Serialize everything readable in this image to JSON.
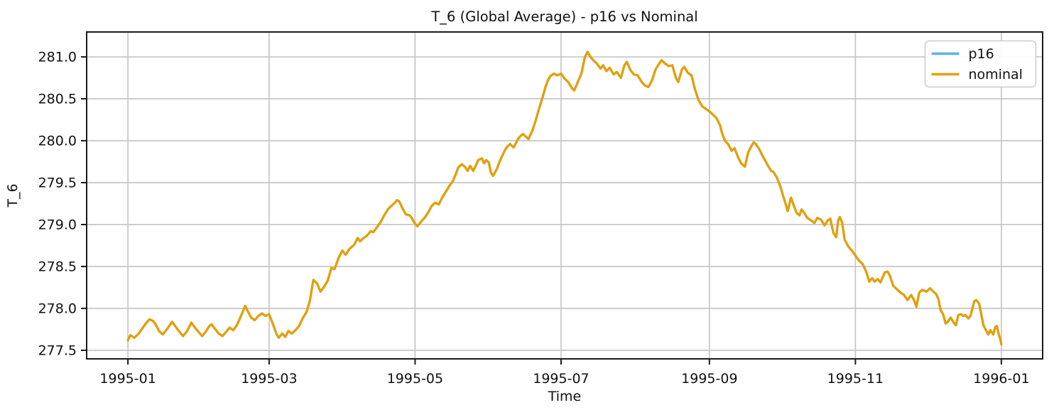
{
  "figure": {
    "background": "#ffffff"
  },
  "chart_data": {
    "type": "line",
    "title": "T_6 (Global Average) - p16 vs Nominal",
    "xlabel": "Time",
    "ylabel": "T_6",
    "grid": true,
    "grid_color": "#c6c6c6",
    "spine_color": "#1a1a1a",
    "x_axis": {
      "unit": "days since 1995-01-01",
      "lim": [
        -17.25,
        382.25
      ],
      "ticks": [
        {
          "day": 0,
          "label": "1995-01"
        },
        {
          "day": 59,
          "label": "1995-03"
        },
        {
          "day": 120,
          "label": "1995-05"
        },
        {
          "day": 181,
          "label": "1995-07"
        },
        {
          "day": 243,
          "label": "1995-09"
        },
        {
          "day": 304,
          "label": "1995-11"
        },
        {
          "day": 365,
          "label": "1996-01"
        }
      ]
    },
    "y_axis": {
      "lim": [
        277.398,
        281.297
      ],
      "ticks": [
        277.5,
        278.0,
        278.5,
        279.0,
        279.5,
        280.0,
        280.5,
        281.0
      ],
      "tick_decimals": 1
    },
    "legend": {
      "position": "upper-right",
      "entries": [
        {
          "label": "p16",
          "color": "#56B4E9"
        },
        {
          "label": "nominal",
          "color": "#E69F00"
        }
      ]
    },
    "series": [
      {
        "name": "p16",
        "color": "#56B4E9",
        "points": "shared"
      },
      {
        "name": "nominal",
        "color": "#E69F00",
        "points": "shared"
      }
    ],
    "shared_points": [
      [
        0,
        277.62
      ],
      [
        1,
        277.68
      ],
      [
        2.7,
        277.65
      ],
      [
        4.5,
        277.7
      ],
      [
        6,
        277.76
      ],
      [
        7.5,
        277.82
      ],
      [
        9,
        277.87
      ],
      [
        10.5,
        277.85
      ],
      [
        11.6,
        277.81
      ],
      [
        13,
        277.73
      ],
      [
        14.5,
        277.69
      ],
      [
        16,
        277.74
      ],
      [
        17.5,
        277.8
      ],
      [
        18.5,
        277.84
      ],
      [
        20,
        277.78
      ],
      [
        21.5,
        277.72
      ],
      [
        23,
        277.67
      ],
      [
        24.5,
        277.72
      ],
      [
        26,
        277.8
      ],
      [
        26.5,
        277.83
      ],
      [
        28,
        277.77
      ],
      [
        29.5,
        277.72
      ],
      [
        31,
        277.67
      ],
      [
        32.5,
        277.72
      ],
      [
        34,
        277.79
      ],
      [
        35,
        277.81
      ],
      [
        36.5,
        277.75
      ],
      [
        38,
        277.7
      ],
      [
        39.5,
        277.67
      ],
      [
        41,
        277.72
      ],
      [
        42.5,
        277.77
      ],
      [
        44,
        277.74
      ],
      [
        45.5,
        277.8
      ],
      [
        46.5,
        277.86
      ],
      [
        48,
        277.96
      ],
      [
        49,
        278.03
      ],
      [
        50,
        277.97
      ],
      [
        51.5,
        277.89
      ],
      [
        53,
        277.86
      ],
      [
        54.5,
        277.91
      ],
      [
        56,
        277.94
      ],
      [
        57.5,
        277.91
      ],
      [
        59,
        277.93
      ],
      [
        60.5,
        277.82
      ],
      [
        62,
        277.7
      ],
      [
        63,
        277.65
      ],
      [
        64.5,
        277.7
      ],
      [
        65.8,
        277.66
      ],
      [
        67,
        277.73
      ],
      [
        68.5,
        277.7
      ],
      [
        70,
        277.74
      ],
      [
        71.5,
        277.79
      ],
      [
        73,
        277.88
      ],
      [
        74.7,
        277.96
      ],
      [
        76,
        278.09
      ],
      [
        77.5,
        278.34
      ],
      [
        79,
        278.3
      ],
      [
        80.5,
        278.2
      ],
      [
        82,
        278.26
      ],
      [
        83.5,
        278.33
      ],
      [
        85,
        278.48
      ],
      [
        86.4,
        278.47
      ],
      [
        88,
        278.6
      ],
      [
        89.6,
        278.69
      ],
      [
        91,
        278.64
      ],
      [
        92.6,
        278.71
      ],
      [
        94.6,
        278.76
      ],
      [
        96,
        278.84
      ],
      [
        97,
        278.8
      ],
      [
        98.5,
        278.84
      ],
      [
        100,
        278.87
      ],
      [
        101.4,
        278.92
      ],
      [
        102.6,
        278.91
      ],
      [
        104.1,
        278.97
      ],
      [
        105.6,
        279.03
      ],
      [
        107.1,
        279.11
      ],
      [
        108.6,
        279.18
      ],
      [
        110,
        279.22
      ],
      [
        111.5,
        279.26
      ],
      [
        112.4,
        279.29
      ],
      [
        113.3,
        279.28
      ],
      [
        114.8,
        279.19
      ],
      [
        116.2,
        279.12
      ],
      [
        117.7,
        279.11
      ],
      [
        118.6,
        279.08
      ],
      [
        119.5,
        279.03
      ],
      [
        121,
        278.98
      ],
      [
        122.4,
        279.03
      ],
      [
        123.9,
        279.08
      ],
      [
        125.4,
        279.14
      ],
      [
        126.9,
        279.22
      ],
      [
        128.4,
        279.26
      ],
      [
        129.9,
        279.24
      ],
      [
        131.3,
        279.32
      ],
      [
        132.8,
        279.39
      ],
      [
        134.3,
        279.46
      ],
      [
        135.8,
        279.52
      ],
      [
        137,
        279.6
      ],
      [
        138,
        279.68
      ],
      [
        139.5,
        279.72
      ],
      [
        140.8,
        279.69
      ],
      [
        142,
        279.64
      ],
      [
        143,
        279.7
      ],
      [
        144.3,
        279.64
      ],
      [
        145.5,
        279.71
      ],
      [
        146.4,
        279.77
      ],
      [
        147.9,
        279.79
      ],
      [
        148.8,
        279.73
      ],
      [
        149.7,
        279.77
      ],
      [
        150.8,
        279.74
      ],
      [
        151.7,
        279.62
      ],
      [
        152.6,
        279.58
      ],
      [
        154.1,
        279.66
      ],
      [
        155.6,
        279.77
      ],
      [
        157.1,
        279.86
      ],
      [
        158.2,
        279.92
      ],
      [
        159.7,
        279.96
      ],
      [
        161.2,
        279.92
      ],
      [
        162.1,
        279.97
      ],
      [
        163,
        280.02
      ],
      [
        164.2,
        280.06
      ],
      [
        165.1,
        280.08
      ],
      [
        166.2,
        280.05
      ],
      [
        167.4,
        280.02
      ],
      [
        169,
        280.12
      ],
      [
        170.4,
        280.24
      ],
      [
        171.8,
        280.38
      ],
      [
        173.3,
        280.52
      ],
      [
        174.5,
        280.64
      ],
      [
        175.5,
        280.72
      ],
      [
        176.5,
        280.77
      ],
      [
        178,
        280.8
      ],
      [
        179.5,
        280.78
      ],
      [
        181,
        280.8
      ],
      [
        182.5,
        280.74
      ],
      [
        184,
        280.7
      ],
      [
        185.5,
        280.63
      ],
      [
        186.5,
        280.6
      ],
      [
        188,
        280.7
      ],
      [
        189.5,
        280.8
      ],
      [
        191,
        281.0
      ],
      [
        192.1,
        281.06
      ],
      [
        193.3,
        281.0
      ],
      [
        194.5,
        280.96
      ],
      [
        196,
        280.92
      ],
      [
        197.5,
        280.86
      ],
      [
        198.6,
        280.9
      ],
      [
        200,
        280.83
      ],
      [
        201.3,
        280.87
      ],
      [
        203,
        280.79
      ],
      [
        204.3,
        280.82
      ],
      [
        206,
        280.75
      ],
      [
        207.5,
        280.9
      ],
      [
        208.5,
        280.94
      ],
      [
        210,
        280.84
      ],
      [
        211.5,
        280.79
      ],
      [
        213,
        280.78
      ],
      [
        214.5,
        280.71
      ],
      [
        216,
        280.66
      ],
      [
        217.5,
        280.64
      ],
      [
        219,
        280.72
      ],
      [
        220.5,
        280.85
      ],
      [
        222,
        280.92
      ],
      [
        223,
        280.96
      ],
      [
        224.5,
        280.92
      ],
      [
        226,
        280.89
      ],
      [
        227.5,
        280.9
      ],
      [
        229,
        280.75
      ],
      [
        230,
        280.7
      ],
      [
        231.5,
        280.85
      ],
      [
        232.5,
        280.88
      ],
      [
        234,
        280.81
      ],
      [
        235.5,
        280.78
      ],
      [
        237,
        280.61
      ],
      [
        238.5,
        280.48
      ],
      [
        240,
        280.41
      ],
      [
        241.5,
        280.38
      ],
      [
        243,
        280.35
      ],
      [
        244.5,
        280.31
      ],
      [
        246,
        280.27
      ],
      [
        247.5,
        280.18
      ],
      [
        248.4,
        280.08
      ],
      [
        249.5,
        280.0
      ],
      [
        250.8,
        279.96
      ],
      [
        252.3,
        279.88
      ],
      [
        253.5,
        279.91
      ],
      [
        255,
        279.8
      ],
      [
        256.3,
        279.73
      ],
      [
        257.8,
        279.69
      ],
      [
        259.2,
        279.86
      ],
      [
        260.6,
        279.94
      ],
      [
        261.5,
        279.98
      ],
      [
        262.4,
        279.96
      ],
      [
        263.8,
        279.9
      ],
      [
        265,
        279.83
      ],
      [
        266.4,
        279.76
      ],
      [
        267.3,
        279.71
      ],
      [
        268.8,
        279.64
      ],
      [
        269.7,
        279.63
      ],
      [
        271.2,
        279.56
      ],
      [
        272.7,
        279.45
      ],
      [
        273.6,
        279.36
      ],
      [
        274.5,
        279.28
      ],
      [
        275.7,
        279.16
      ],
      [
        277.1,
        279.32
      ],
      [
        278.1,
        279.24
      ],
      [
        279.4,
        279.14
      ],
      [
        280.6,
        279.11
      ],
      [
        281.5,
        279.18
      ],
      [
        282.4,
        279.15
      ],
      [
        283.9,
        279.08
      ],
      [
        285.4,
        279.05
      ],
      [
        286.9,
        279.02
      ],
      [
        288.1,
        279.08
      ],
      [
        289.6,
        279.06
      ],
      [
        291.1,
        278.99
      ],
      [
        292.5,
        279.05
      ],
      [
        293.5,
        279.07
      ],
      [
        294.8,
        278.9
      ],
      [
        296,
        278.85
      ],
      [
        296.8,
        279.05
      ],
      [
        297.5,
        279.09
      ],
      [
        298.5,
        279.02
      ],
      [
        299.5,
        278.82
      ],
      [
        301,
        278.74
      ],
      [
        302.5,
        278.69
      ],
      [
        304,
        278.63
      ],
      [
        305.5,
        278.57
      ],
      [
        307,
        278.53
      ],
      [
        308.5,
        278.44
      ],
      [
        309.8,
        278.32
      ],
      [
        311,
        278.36
      ],
      [
        312,
        278.32
      ],
      [
        313.3,
        278.35
      ],
      [
        314.5,
        278.31
      ],
      [
        316.3,
        278.43
      ],
      [
        317.4,
        278.44
      ],
      [
        318.3,
        278.4
      ],
      [
        319.8,
        278.27
      ],
      [
        321.3,
        278.23
      ],
      [
        322.8,
        278.19
      ],
      [
        324.3,
        278.16
      ],
      [
        325.8,
        278.1
      ],
      [
        327.3,
        278.16
      ],
      [
        328.5,
        278.1
      ],
      [
        329.5,
        278.02
      ],
      [
        330.7,
        278.19
      ],
      [
        331.9,
        278.22
      ],
      [
        333.7,
        278.2
      ],
      [
        335.2,
        278.24
      ],
      [
        336.6,
        278.2
      ],
      [
        337.8,
        278.17
      ],
      [
        338.7,
        278.11
      ],
      [
        339.6,
        277.98
      ],
      [
        340.8,
        277.92
      ],
      [
        341.7,
        277.82
      ],
      [
        342.6,
        277.84
      ],
      [
        343.8,
        277.89
      ],
      [
        345.3,
        277.82
      ],
      [
        346,
        277.8
      ],
      [
        347,
        277.92
      ],
      [
        348.2,
        277.93
      ],
      [
        349.1,
        277.91
      ],
      [
        350,
        277.92
      ],
      [
        351.2,
        277.88
      ],
      [
        352.1,
        277.91
      ],
      [
        353.6,
        278.08
      ],
      [
        354.5,
        278.1
      ],
      [
        355.7,
        278.06
      ],
      [
        356.6,
        277.93
      ],
      [
        357.5,
        277.8
      ],
      [
        358.6,
        277.74
      ],
      [
        359.5,
        277.69
      ],
      [
        360.4,
        277.74
      ],
      [
        361.6,
        277.69
      ],
      [
        362.5,
        277.78
      ],
      [
        363.1,
        277.79
      ],
      [
        364,
        277.68
      ],
      [
        364.6,
        277.63
      ],
      [
        365,
        277.57
      ]
    ]
  }
}
